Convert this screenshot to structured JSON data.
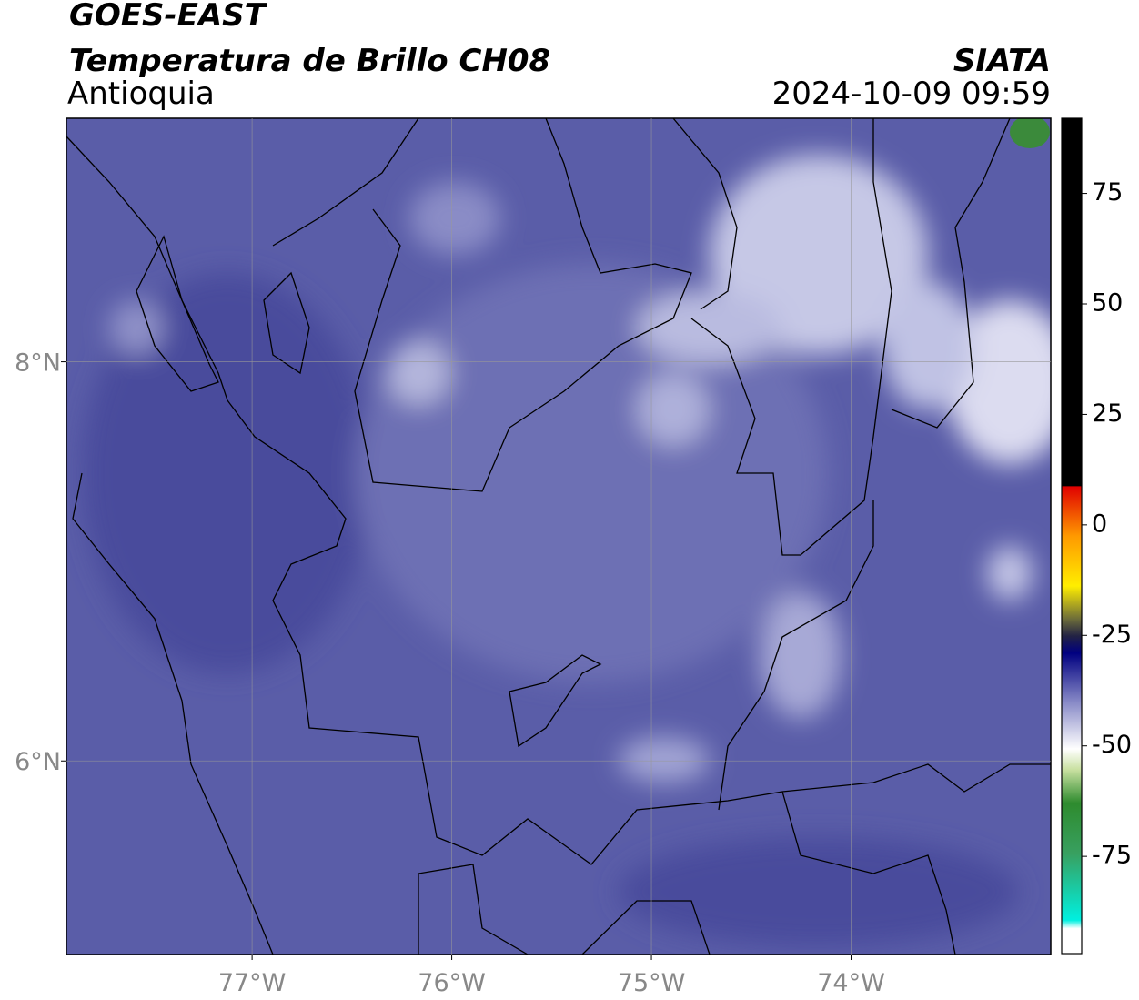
{
  "header": {
    "title": "GOES-EAST",
    "subtitle": "Temperatura de Brillo CH08",
    "region": "Antioquia",
    "source": "SIATA",
    "timestamp": "2024-10-09 09:59"
  },
  "map": {
    "xlim": [
      -77.93,
      -73.0
    ],
    "ylim": [
      5.03,
      9.22
    ],
    "xticks": [
      {
        "value": -77,
        "label": "77°W"
      },
      {
        "value": -76,
        "label": "76°W"
      },
      {
        "value": -75,
        "label": "75°W"
      },
      {
        "value": -74,
        "label": "74°W"
      }
    ],
    "yticks": [
      {
        "value": 6,
        "label": "6°N"
      },
      {
        "value": 8,
        "label": "8°N"
      }
    ],
    "grid": true
  },
  "colorbar": {
    "lim": [
      -97,
      92
    ],
    "ticks": [
      75,
      50,
      25,
      0,
      -25,
      -50,
      -75
    ]
  }
}
